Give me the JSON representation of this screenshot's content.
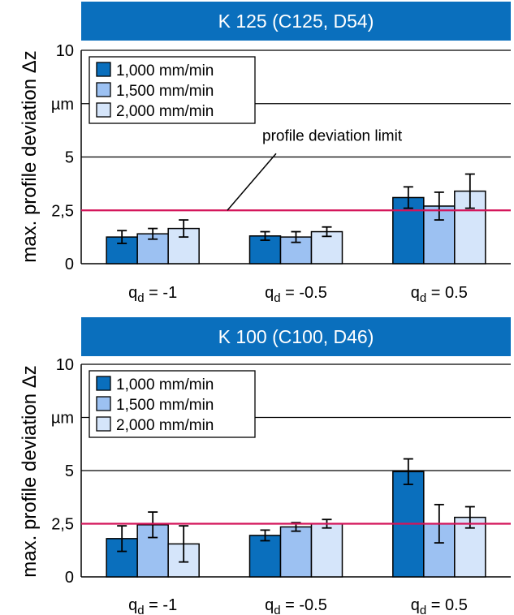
{
  "chart_data": [
    {
      "type": "bar",
      "title": "K 125 (C125, D54)",
      "ylabel": "max. profile deviation Δz",
      "y_ticks": [
        "0",
        "2,5",
        "5",
        "µm",
        "10"
      ],
      "ylim": [
        0,
        10
      ],
      "categories": [
        "qd = -1",
        "qd = -0.5",
        "qd = 0.5"
      ],
      "category_labels": [
        {
          "main": "q",
          "sub": "d",
          "rest": " = -1"
        },
        {
          "main": "q",
          "sub": "d",
          "rest": " = -0.5"
        },
        {
          "main": "q",
          "sub": "d",
          "rest": " = 0.5"
        }
      ],
      "series": [
        {
          "name": "1,000 mm/min",
          "color": "#0a6fbd",
          "values": [
            1.25,
            1.3,
            3.1
          ],
          "err": [
            0.3,
            0.2,
            0.5
          ]
        },
        {
          "name": "1,500 mm/min",
          "color": "#9cc1f2",
          "values": [
            1.4,
            1.25,
            2.7
          ],
          "err": [
            0.25,
            0.25,
            0.65
          ]
        },
        {
          "name": "2,000 mm/min",
          "color": "#d5e5fa",
          "values": [
            1.65,
            1.5,
            3.4
          ],
          "err": [
            0.4,
            0.22,
            0.8
          ]
        }
      ],
      "reference_line": {
        "value": 2.5,
        "label": "profile deviation limit",
        "color": "#d4145a"
      },
      "grid": true,
      "legend": "top-left"
    },
    {
      "type": "bar",
      "title": "K 100 (C100, D46)",
      "ylabel": "max. profile deviation Δz",
      "y_ticks": [
        "0",
        "2,5",
        "5",
        "µm",
        "10"
      ],
      "ylim": [
        0,
        10
      ],
      "categories": [
        "qd = -1",
        "qd = -0.5",
        "qd = 0.5"
      ],
      "category_labels": [
        {
          "main": "q",
          "sub": "d",
          "rest": " = -1"
        },
        {
          "main": "q",
          "sub": "d",
          "rest": " = -0.5"
        },
        {
          "main": "q",
          "sub": "d",
          "rest": " = 0.5"
        }
      ],
      "series": [
        {
          "name": "1,000 mm/min",
          "color": "#0a6fbd",
          "values": [
            1.8,
            1.95,
            4.95
          ],
          "err": [
            0.6,
            0.25,
            0.6
          ]
        },
        {
          "name": "1,500 mm/min",
          "color": "#9cc1f2",
          "values": [
            2.45,
            2.35,
            2.5
          ],
          "err": [
            0.6,
            0.2,
            0.9
          ]
        },
        {
          "name": "2,000 mm/min",
          "color": "#d5e5fa",
          "values": [
            1.55,
            2.5,
            2.8
          ],
          "err": [
            0.85,
            0.2,
            0.5
          ]
        }
      ],
      "reference_line": {
        "value": 2.5,
        "label": "",
        "color": "#d4145a"
      },
      "grid": true,
      "legend": "top-left"
    }
  ]
}
